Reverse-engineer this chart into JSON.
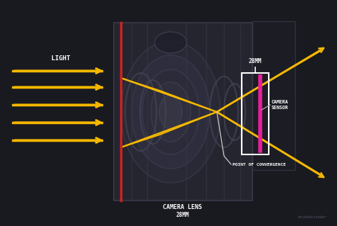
{
  "bg_color": "#191920",
  "lens_body_color": "#252530",
  "lens_section_color": "#2a2a35",
  "lens_outline": "#3a3a48",
  "lens_dark": "#1e1e28",
  "red_line_color": "#cc2222",
  "yellow_color": "#f5b800",
  "magenta_color": "#e8209a",
  "white_color": "#ffffff",
  "gray_color": "#aaaaaa",
  "text_light": "LIGHT",
  "text_camera_lens": "CAMERA LENS",
  "text_28mm_lens": "28MM",
  "text_28mm_top": "28MM",
  "text_camera_sensor": "CAMERA\nSENSOR",
  "text_convergence": "POINT OF CONVERGENCE",
  "text_studobinder": "studobinder",
  "figsize": [
    4.74,
    3.19
  ],
  "dpi": 100,
  "xlim": [
    0,
    474
  ],
  "ylim": [
    0,
    319
  ]
}
